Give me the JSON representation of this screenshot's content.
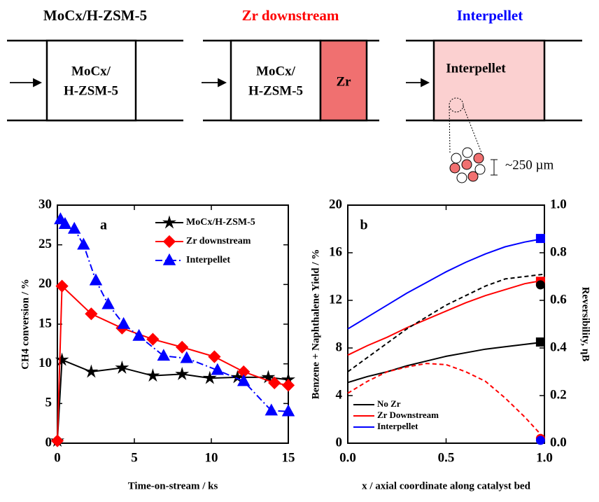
{
  "diagram": {
    "panels": [
      {
        "title": "MoCx/H-ZSM-5",
        "box_lines": [
          "MoCx/",
          "H-ZSM-5"
        ]
      },
      {
        "title": "Zr downstream",
        "box_lines": [
          "MoCx/",
          "H-ZSM-5"
        ],
        "second_box": "Zr"
      },
      {
        "title": "Interpellet",
        "box_lines": [
          "Interpellet"
        ],
        "annotation": "~250 µm"
      }
    ]
  },
  "chart_data": [
    {
      "type": "line",
      "panel_label": "a",
      "xlabel": "Time-on-stream / ks",
      "ylabel": "CH4 conversion / %",
      "xlim": [
        0,
        15
      ],
      "xticks": [
        0,
        5,
        10,
        15
      ],
      "ylim": [
        0,
        30
      ],
      "yticks": [
        0,
        5,
        10,
        15,
        20,
        25,
        30
      ],
      "series": [
        {
          "name": "MoCx/H-ZSM-5",
          "color": "#000000",
          "marker": "star",
          "dash": "solid",
          "x": [
            0,
            0.3,
            2.2,
            4.2,
            6.2,
            8.1,
            9.9,
            11.7,
            13.7,
            15
          ],
          "values": [
            0.3,
            10.5,
            9.0,
            9.5,
            8.5,
            8.7,
            8.2,
            8.3,
            8.3,
            8.0
          ]
        },
        {
          "name": "Zr downstream",
          "color": "#ff0000",
          "marker": "diamond",
          "dash": "solid",
          "x": [
            0,
            0.3,
            2.2,
            4.2,
            6.2,
            8.1,
            10.2,
            12.1,
            14.1,
            15
          ],
          "values": [
            0.3,
            19.8,
            16.3,
            14.5,
            13.1,
            12.1,
            10.9,
            9.0,
            7.6,
            7.3
          ]
        },
        {
          "name": "Interpellet",
          "color": "#0000ff",
          "marker": "triangle",
          "dash": "dashdot",
          "x": [
            0.2,
            0.5,
            1.1,
            1.7,
            2.5,
            3.3,
            4.3,
            5.3,
            6.9,
            8.4,
            10.4,
            12.1,
            13.9,
            15
          ],
          "values": [
            28.2,
            27.6,
            27.0,
            25.0,
            20.5,
            17.5,
            15.0,
            13.5,
            11.0,
            10.7,
            9.2,
            7.8,
            4.1,
            4.0
          ]
        }
      ]
    },
    {
      "type": "line",
      "panel_label": "b",
      "xlabel": "x / axial coordinate along catalyst bed",
      "ylabel": "Benzene + Naphthalene Yield / %",
      "y2label": "Reversibility, ηB",
      "xlim": [
        0,
        1
      ],
      "xticks": [
        {
          "value": 0,
          "label": "0.0"
        },
        0.5,
        {
          "value": 1,
          "label": "1.0"
        }
      ],
      "ylim": [
        0,
        20
      ],
      "yticks": [
        0,
        4,
        8,
        12,
        16,
        20
      ],
      "y2lim": [
        0,
        1
      ],
      "y2ticks": [
        {
          "value": 0,
          "label": "0.0"
        },
        0.2,
        0.4,
        0.6,
        0.8,
        {
          "value": 1,
          "label": "1.0"
        }
      ],
      "x": [
        0,
        0.1,
        0.2,
        0.3,
        0.4,
        0.5,
        0.6,
        0.7,
        0.8,
        0.9,
        1
      ],
      "series": [
        {
          "name": "No Zr",
          "color": "#000000",
          "dash": "solid",
          "values": [
            5.1,
            5.6,
            6.0,
            6.5,
            6.9,
            7.3,
            7.6,
            7.9,
            8.1,
            8.3,
            8.5
          ]
        },
        {
          "name": "Zr Downstream",
          "color": "#ff0000",
          "dash": "solid",
          "values": [
            7.4,
            8.2,
            8.9,
            9.7,
            10.4,
            11.1,
            11.8,
            12.4,
            12.9,
            13.4,
            13.7
          ]
        },
        {
          "name": "Interpellet",
          "color": "#0000ff",
          "dash": "solid",
          "values": [
            9.6,
            10.6,
            11.6,
            12.6,
            13.5,
            14.4,
            15.2,
            15.9,
            16.5,
            16.9,
            17.2
          ]
        },
        {
          "color": "#000000",
          "dash": "dashed",
          "axis": "y2",
          "values": [
            0.3,
            0.36,
            0.42,
            0.48,
            0.53,
            0.58,
            0.62,
            0.66,
            0.69,
            0.7,
            0.71
          ]
        },
        {
          "color": "#ff0000",
          "dash": "dashed",
          "axis": "y2",
          "values": [
            0.21,
            0.26,
            0.3,
            0.32,
            0.335,
            0.33,
            0.3,
            0.26,
            0.19,
            0.11,
            0.02
          ]
        }
      ],
      "points": [
        {
          "x": 0.98,
          "y": 8.5,
          "color": "#000000",
          "marker": "square"
        },
        {
          "x": 0.98,
          "y": 17.2,
          "color": "#0000ff",
          "marker": "square"
        },
        {
          "x": 0.98,
          "y": 13.6,
          "color": "#ff0000",
          "marker": "square"
        },
        {
          "x": 0.98,
          "y": 0.665,
          "color": "#000000",
          "marker": "circle",
          "axis": "y2"
        },
        {
          "x": 0.98,
          "y": 0.02,
          "color": "#ff0000",
          "marker": "circle",
          "axis": "y2"
        },
        {
          "x": 0.98,
          "y": 0.012,
          "color": "#0000ff",
          "marker": "circle",
          "axis": "y2"
        }
      ]
    }
  ]
}
